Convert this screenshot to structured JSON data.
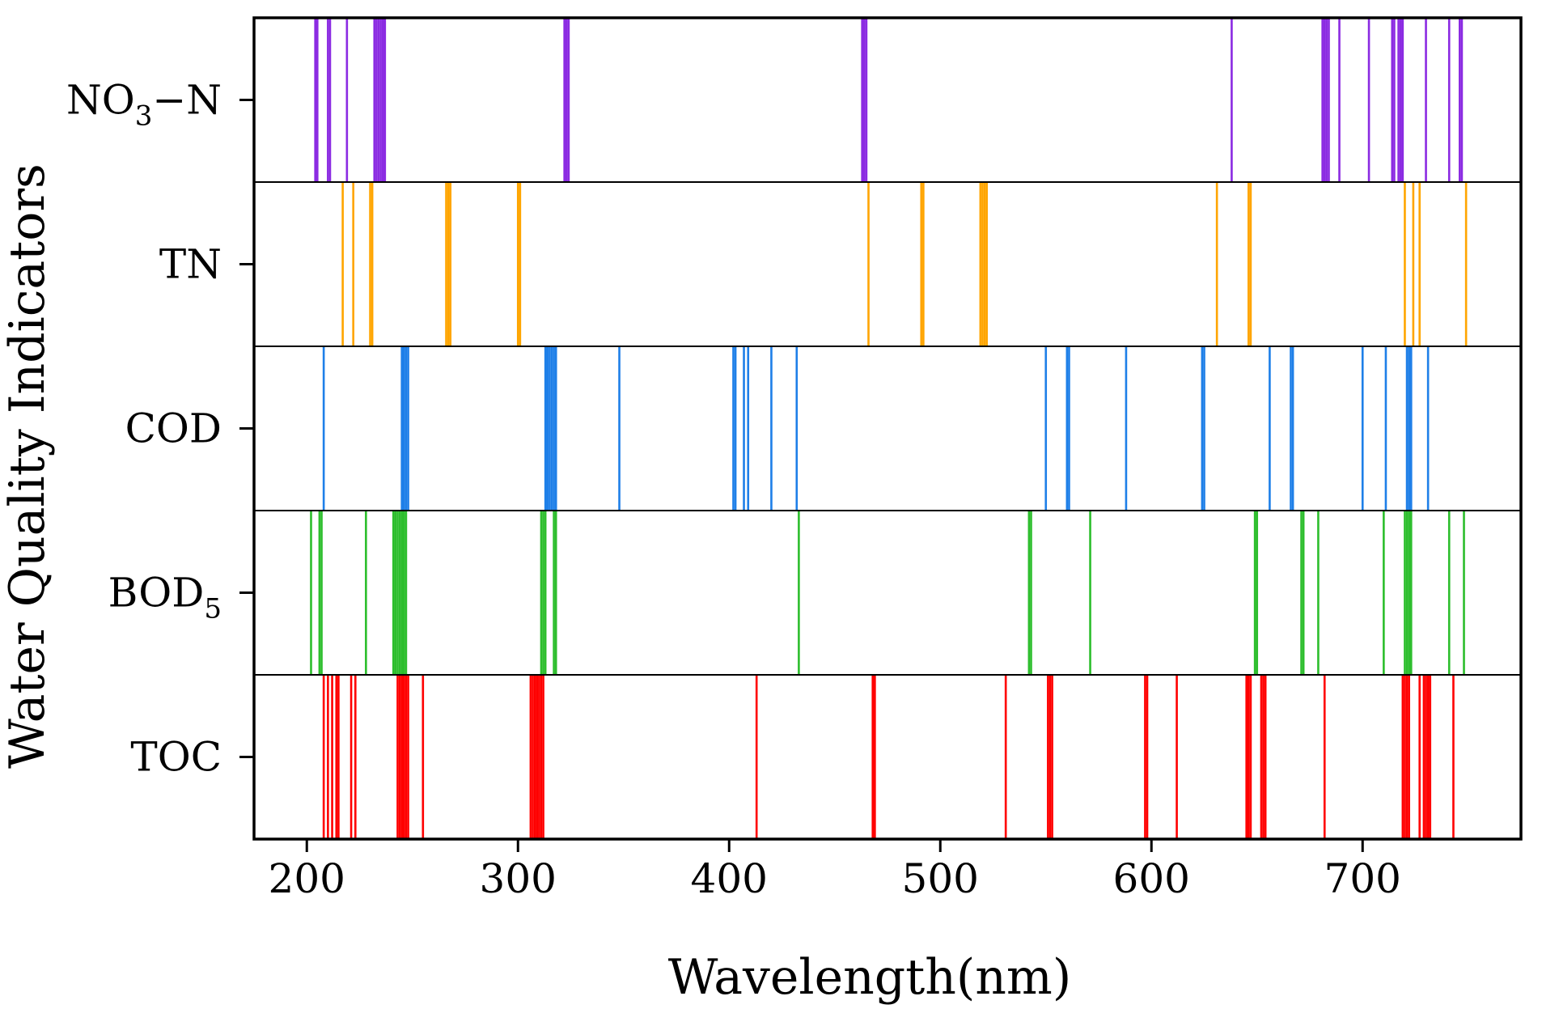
{
  "chart_data": {
    "type": "spectral-band-selection",
    "title": "",
    "xlabel": "Wavelength(nm)",
    "ylabel": "Water Quality Indicators",
    "xlim": [
      175,
      775
    ],
    "xticks": [
      200,
      300,
      400,
      500,
      600,
      700
    ],
    "grid": false,
    "series": [
      {
        "name": "NO3-N",
        "label_main": "NO",
        "label_sub": "3",
        "label_tail": "−N",
        "color": "#8B2BE2",
        "wavelengths": [
          204,
          205,
          210,
          211,
          219,
          232,
          233,
          234,
          235,
          236,
          237,
          322,
          323,
          324,
          463,
          464,
          465,
          638,
          681,
          682,
          683,
          684,
          689,
          703,
          714,
          715,
          717,
          718,
          719,
          730,
          741,
          746,
          747
        ]
      },
      {
        "name": "TN",
        "label_main": "TN",
        "color": "#FFA500",
        "wavelengths": [
          217,
          222,
          230,
          231,
          266,
          267,
          268,
          300,
          301,
          466,
          491,
          492,
          519,
          520,
          521,
          522,
          631,
          646,
          647,
          720,
          724,
          727,
          749
        ]
      },
      {
        "name": "COD",
        "label_main": "COD",
        "color": "#1E7FE8",
        "wavelengths": [
          208,
          245,
          246,
          247,
          248,
          313,
          314,
          315,
          316,
          317,
          318,
          348,
          402,
          403,
          407,
          409,
          420,
          432,
          550,
          560,
          561,
          588,
          624,
          625,
          656,
          666,
          667,
          700,
          711,
          721,
          722,
          723,
          731
        ]
      },
      {
        "name": "BOD5",
        "label_main": "BOD",
        "label_sub": "5",
        "color": "#2DBE2D",
        "wavelengths": [
          202,
          206,
          207,
          228,
          241,
          242,
          243,
          244,
          245,
          246,
          247,
          311,
          312,
          313,
          317,
          318,
          433,
          542,
          543,
          571,
          649,
          650,
          671,
          672,
          679,
          710,
          720,
          721,
          722,
          723,
          741,
          748
        ]
      },
      {
        "name": "TOC",
        "label_main": "TOC",
        "color": "#FF0000",
        "wavelengths": [
          208,
          210,
          212,
          214,
          215,
          221,
          223,
          243,
          244,
          245,
          246,
          247,
          248,
          255,
          306,
          307,
          308,
          309,
          310,
          311,
          312,
          413,
          468,
          469,
          531,
          551,
          552,
          553,
          597,
          598,
          612,
          645,
          646,
          647,
          652,
          653,
          654,
          682,
          719,
          720,
          721,
          722,
          727,
          729,
          730,
          731,
          732,
          743
        ]
      }
    ]
  }
}
